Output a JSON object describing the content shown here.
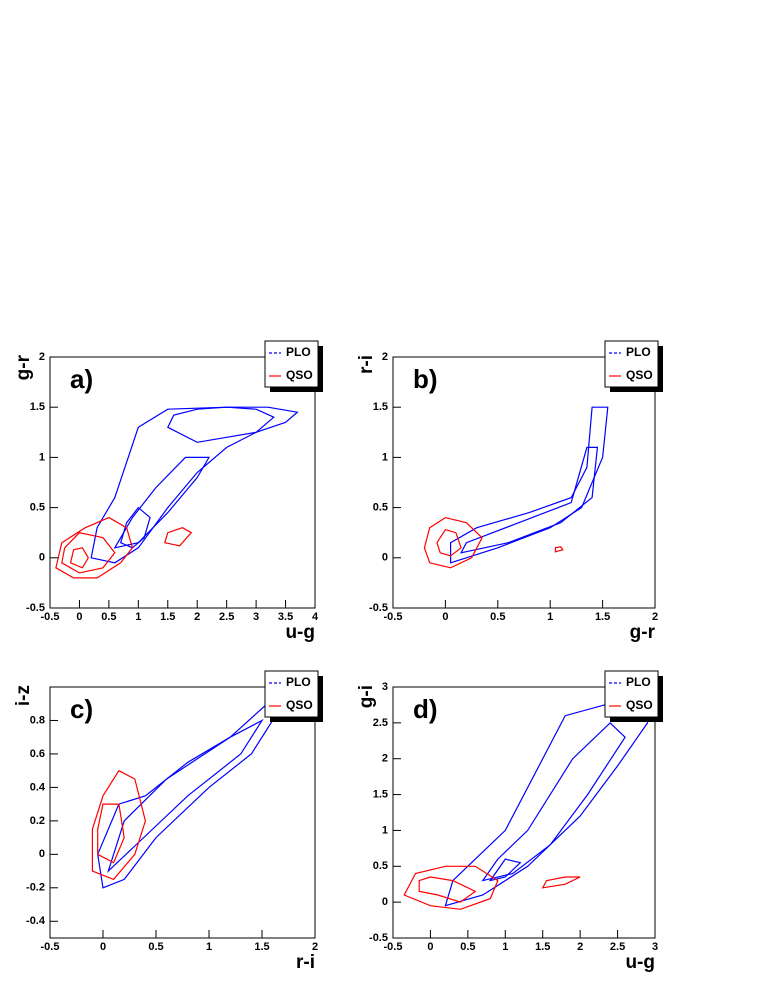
{
  "chart_data": [
    {
      "type": "contour",
      "panel": "a)",
      "xlabel": "u-g",
      "ylabel": "g-r",
      "legend": "top-right",
      "xlim": [
        -0.5,
        4
      ],
      "xticks": [
        -0.5,
        0,
        0.5,
        1,
        1.5,
        2,
        2.5,
        3,
        3.5,
        4
      ],
      "ylim": [
        -0.5,
        2
      ],
      "yticks": [
        -0.5,
        0,
        0.5,
        1,
        1.5,
        2
      ],
      "series": [
        {
          "name": "PLO",
          "color": "#0000ff",
          "contours": [
            {
              "x": [
                0.2,
                0.6,
                1.0,
                1.5,
                2.0,
                2.5,
                3.0,
                3.5,
                3.7,
                3.2,
                2.5,
                1.5,
                1.0,
                0.6,
                0.3
              ],
              "y": [
                0.0,
                -0.05,
                0.1,
                0.5,
                0.85,
                1.1,
                1.25,
                1.35,
                1.45,
                1.5,
                1.5,
                1.48,
                1.3,
                0.6,
                0.3
              ]
            },
            {
              "x": [
                0.6,
                1.0,
                1.5,
                2.0,
                2.2,
                1.8,
                1.3,
                0.9
              ],
              "y": [
                0.1,
                0.15,
                0.45,
                0.8,
                1.0,
                1.0,
                0.7,
                0.4
              ]
            },
            {
              "x": [
                1.5,
                2.0,
                2.5,
                3.0,
                3.3,
                3.0,
                2.5,
                2.0,
                1.6
              ],
              "y": [
                1.3,
                1.15,
                1.2,
                1.25,
                1.4,
                1.48,
                1.5,
                1.48,
                1.42
              ]
            },
            {
              "x": [
                0.7,
                0.9,
                1.1,
                1.2,
                1.0,
                0.8
              ],
              "y": [
                0.15,
                0.1,
                0.2,
                0.4,
                0.5,
                0.35
              ]
            }
          ]
        },
        {
          "name": "QSO",
          "color": "#ff0000",
          "contours": [
            {
              "x": [
                -0.4,
                -0.1,
                0.3,
                0.7,
                0.9,
                0.8,
                0.5,
                0.1,
                -0.3
              ],
              "y": [
                -0.1,
                -0.2,
                -0.2,
                -0.05,
                0.1,
                0.3,
                0.4,
                0.3,
                0.15
              ]
            },
            {
              "x": [
                -0.3,
                0,
                0.4,
                0.6,
                0.4,
                0,
                -0.25
              ],
              "y": [
                -0.05,
                -0.15,
                -0.1,
                0.05,
                0.2,
                0.25,
                0.1
              ]
            },
            {
              "x": [
                -0.15,
                0.05,
                0.15,
                0.05,
                -0.1
              ],
              "y": [
                -0.05,
                -0.1,
                0.0,
                0.1,
                0.08
              ]
            },
            {
              "x": [
                1.45,
                1.7,
                1.9,
                1.75,
                1.5
              ],
              "y": [
                0.15,
                0.12,
                0.25,
                0.3,
                0.25
              ]
            }
          ]
        }
      ]
    },
    {
      "type": "contour",
      "panel": "b)",
      "xlabel": "g-r",
      "ylabel": "r-i",
      "legend": "top-right",
      "xlim": [
        -0.5,
        2
      ],
      "xticks": [
        -0.5,
        0,
        0.5,
        1,
        1.5,
        2
      ],
      "ylim": [
        -0.5,
        2
      ],
      "yticks": [
        -0.5,
        0,
        0.5,
        1,
        1.5,
        2
      ],
      "series": [
        {
          "name": "PLO",
          "color": "#0000ff",
          "contours": [
            {
              "x": [
                0.05,
                0.5,
                1.0,
                1.3,
                1.5,
                1.55,
                1.4,
                1.35,
                1.2,
                0.8,
                0.3,
                0.05
              ],
              "y": [
                -0.05,
                0.1,
                0.3,
                0.5,
                1.0,
                1.5,
                1.5,
                0.9,
                0.6,
                0.45,
                0.3,
                0.15
              ]
            },
            {
              "x": [
                0.15,
                0.6,
                1.1,
                1.4,
                1.45,
                1.35,
                1.2,
                0.7,
                0.2
              ],
              "y": [
                0.05,
                0.15,
                0.35,
                0.6,
                1.1,
                1.1,
                0.55,
                0.35,
                0.15
              ]
            }
          ]
        },
        {
          "name": "QSO",
          "color": "#ff0000",
          "contours": [
            {
              "x": [
                -0.15,
                0.05,
                0.25,
                0.35,
                0.2,
                0,
                -0.15,
                -0.2
              ],
              "y": [
                -0.05,
                -0.1,
                0,
                0.2,
                0.35,
                0.4,
                0.3,
                0.1
              ]
            },
            {
              "x": [
                -0.05,
                0.05,
                0.15,
                0.1,
                0,
                -0.08
              ],
              "y": [
                0.05,
                0.02,
                0.1,
                0.25,
                0.28,
                0.15
              ]
            },
            {
              "x": [
                1.05,
                1.12,
                1.1,
                1.05
              ],
              "y": [
                0.06,
                0.08,
                0.11,
                0.1
              ]
            }
          ]
        }
      ]
    },
    {
      "type": "contour",
      "panel": "c)",
      "xlabel": "r-i",
      "ylabel": "i-z",
      "legend": "top-right",
      "xlim": [
        -0.5,
        2
      ],
      "xticks": [
        -0.5,
        0,
        0.5,
        1,
        1.5,
        2
      ],
      "ylim": [
        -0.5,
        1
      ],
      "yticks": [
        -0.4,
        -0.2,
        0,
        0.2,
        0.4,
        0.6,
        0.8
      ],
      "series": [
        {
          "name": "PLO",
          "color": "#0000ff",
          "contours": [
            {
              "x": [
                0.0,
                0.2,
                0.5,
                1.0,
                1.4,
                1.65,
                1.55,
                1.2,
                0.8,
                0.4,
                0.15,
                -0.05
              ],
              "y": [
                -0.2,
                -0.15,
                0.1,
                0.4,
                0.6,
                0.85,
                0.9,
                0.7,
                0.55,
                0.35,
                0.3,
                0.0
              ]
            },
            {
              "x": [
                0.05,
                0.3,
                0.8,
                1.3,
                1.5,
                1.2,
                0.6,
                0.2
              ],
              "y": [
                -0.1,
                0.05,
                0.35,
                0.6,
                0.8,
                0.7,
                0.45,
                0.2
              ]
            }
          ]
        },
        {
          "name": "QSO",
          "color": "#ff0000",
          "contours": [
            {
              "x": [
                -0.1,
                0.1,
                0.3,
                0.4,
                0.3,
                0.15,
                0,
                -0.1
              ],
              "y": [
                -0.1,
                -0.15,
                0.0,
                0.2,
                0.45,
                0.5,
                0.35,
                0.15
              ]
            },
            {
              "x": [
                -0.05,
                0.1,
                0.2,
                0.15,
                0,
                -0.05
              ],
              "y": [
                0.0,
                -0.05,
                0.1,
                0.3,
                0.3,
                0.15
              ]
            }
          ]
        }
      ]
    },
    {
      "type": "contour",
      "panel": "d)",
      "xlabel": "u-g",
      "ylabel": "g-i",
      "legend": "top-right",
      "xlim": [
        -0.5,
        3
      ],
      "xticks": [
        -0.5,
        0,
        0.5,
        1,
        1.5,
        2,
        2.5,
        3
      ],
      "ylim": [
        -0.5,
        3
      ],
      "yticks": [
        -0.5,
        0,
        0.5,
        1,
        1.5,
        2,
        2.5,
        3
      ],
      "series": [
        {
          "name": "PLO",
          "color": "#0000ff",
          "contours": [
            {
              "x": [
                0.2,
                0.7,
                1.3,
                2.0,
                2.5,
                2.9,
                2.9,
                2.5,
                1.8,
                1.0,
                0.6,
                0.3
              ],
              "y": [
                -0.05,
                0.1,
                0.5,
                1.2,
                1.9,
                2.5,
                2.9,
                2.8,
                2.6,
                1.0,
                0.6,
                0.3
              ]
            },
            {
              "x": [
                0.7,
                1.1,
                1.6,
                2.1,
                2.6,
                2.4,
                1.9,
                1.3,
                0.9
              ],
              "y": [
                0.3,
                0.4,
                0.8,
                1.5,
                2.3,
                2.5,
                2.0,
                1.0,
                0.6
              ]
            },
            {
              "x": [
                0.8,
                1.0,
                1.2,
                1.0
              ],
              "y": [
                0.3,
                0.35,
                0.55,
                0.6
              ]
            }
          ]
        },
        {
          "name": "QSO",
          "color": "#ff0000",
          "contours": [
            {
              "x": [
                -0.35,
                0,
                0.4,
                0.8,
                0.9,
                0.6,
                0.2,
                -0.2
              ],
              "y": [
                0.1,
                -0.05,
                -0.1,
                0.05,
                0.3,
                0.5,
                0.5,
                0.4
              ]
            },
            {
              "x": [
                -0.15,
                0.1,
                0.4,
                0.6,
                0.3,
                0,
                -0.15
              ],
              "y": [
                0.15,
                0.1,
                0.0,
                0.15,
                0.3,
                0.35,
                0.3
              ]
            },
            {
              "x": [
                1.5,
                1.8,
                2.0,
                1.8,
                1.55
              ],
              "y": [
                0.2,
                0.25,
                0.35,
                0.35,
                0.3
              ]
            }
          ]
        }
      ]
    }
  ]
}
